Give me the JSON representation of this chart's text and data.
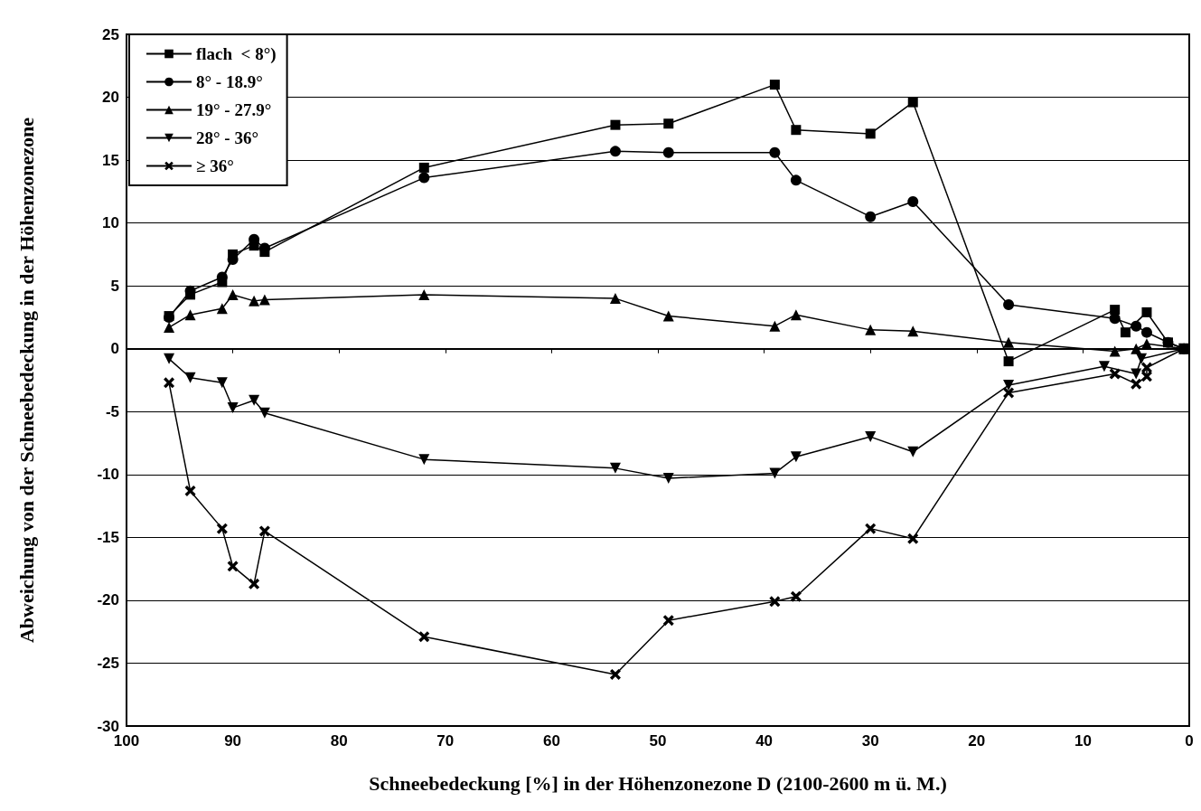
{
  "chart_data": {
    "type": "line",
    "xlabel": "Schneebedeckung [%] in der Höhenzonezone D (2100-2600 m ü. M.)",
    "ylabel": "Abweichung von der Schneebedeckung in der Höhenzonezone",
    "xlim": [
      100,
      0
    ],
    "xticks": [
      100,
      90,
      80,
      70,
      60,
      50,
      40,
      30,
      20,
      10,
      0
    ],
    "ylim": [
      -30,
      25
    ],
    "yticks": [
      -30,
      -25,
      -20,
      -15,
      -10,
      -5,
      0,
      5,
      10,
      15,
      20,
      25
    ],
    "grid": "y",
    "legend": "top left",
    "line_style": "solid",
    "series": [
      {
        "name": "flach  < 8°)",
        "color": "#000000",
        "marker": "square",
        "x": [
          96,
          94,
          91,
          90,
          88,
          87,
          72,
          54,
          49,
          39,
          37,
          30,
          26,
          17,
          7,
          6,
          4,
          2,
          0.5
        ],
        "values": [
          2.6,
          4.3,
          5.3,
          7.5,
          8.2,
          7.7,
          14.4,
          17.8,
          17.9,
          21.0,
          17.4,
          17.1,
          19.6,
          -1.0,
          3.1,
          1.3,
          2.9,
          0.5,
          0
        ]
      },
      {
        "name": "8° - 18.9°",
        "color": "#000000",
        "marker": "circle",
        "x": [
          96,
          94,
          91,
          90,
          88,
          87,
          72,
          54,
          49,
          39,
          37,
          30,
          26,
          17,
          7,
          5,
          4,
          2,
          0.5
        ],
        "values": [
          2.5,
          4.6,
          5.7,
          7.1,
          8.7,
          8.0,
          13.6,
          15.7,
          15.6,
          15.6,
          13.4,
          10.5,
          11.7,
          3.5,
          2.4,
          1.8,
          1.3,
          0.5,
          0
        ]
      },
      {
        "name": "19° - 27.9°",
        "color": "#000000",
        "marker": "triangle",
        "x": [
          96,
          94,
          91,
          90,
          88,
          87,
          72,
          54,
          49,
          39,
          37,
          30,
          26,
          17,
          7,
          5,
          4,
          0.5
        ],
        "values": [
          1.7,
          2.7,
          3.2,
          4.3,
          3.8,
          3.9,
          4.3,
          4.0,
          2.6,
          1.8,
          2.7,
          1.5,
          1.4,
          0.5,
          -0.2,
          0.0,
          0.4,
          0
        ]
      },
      {
        "name": "28° - 36°",
        "color": "#000000",
        "marker": "triangle-down",
        "x": [
          96,
          94,
          91,
          90,
          88,
          87,
          72,
          54,
          49,
          39,
          37,
          30,
          26,
          17,
          8,
          5,
          4.5,
          0.5
        ],
        "values": [
          -0.8,
          -2.3,
          -2.7,
          -4.7,
          -4.1,
          -5.1,
          -8.8,
          -9.5,
          -10.3,
          -9.9,
          -8.6,
          -7.0,
          -8.2,
          -2.9,
          -1.4,
          -2.0,
          -0.8,
          0
        ]
      },
      {
        "name": "≥ 36°",
        "color": "#000000",
        "marker": "cross",
        "x": [
          96,
          94,
          91,
          90,
          88,
          87,
          72,
          54,
          49,
          39,
          37,
          30,
          26,
          17,
          7,
          5,
          4,
          4,
          0.5
        ],
        "values": [
          -2.7,
          -11.3,
          -14.3,
          -17.3,
          -18.7,
          -14.5,
          -22.9,
          -25.9,
          -21.6,
          -20.1,
          -19.7,
          -14.3,
          -15.1,
          -3.5,
          -2.0,
          -2.8,
          -2.2,
          -1.5,
          0
        ]
      }
    ]
  }
}
